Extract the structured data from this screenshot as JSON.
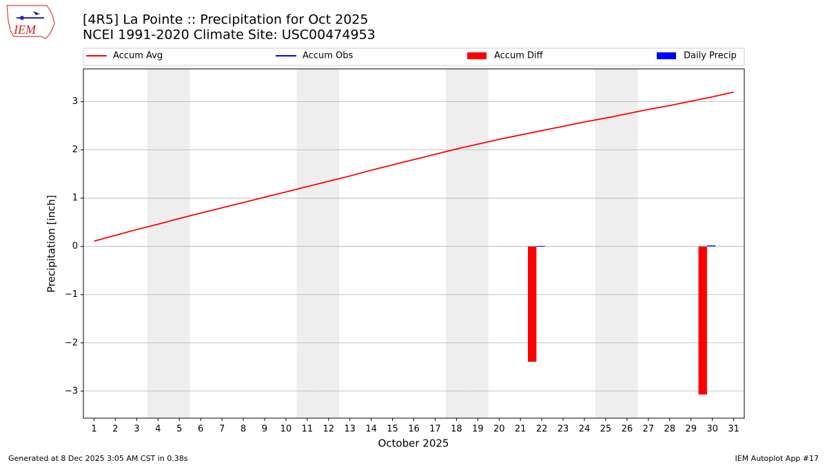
{
  "chart_data": {
    "type": "combo",
    "title": "[4R5] La Pointe :: Precipitation for Oct 2025",
    "subtitle": "NCEI 1991-2020 Climate Site: USC00474953",
    "xlabel": "October 2025",
    "ylabel": "Precipitation [inch]",
    "logo_text": "IEM",
    "footer_left": "Generated at 8 Dec 2025 3:05 AM CST in 0.38s",
    "footer_right": "IEM Autoplot App #17",
    "x": [
      1,
      2,
      3,
      4,
      5,
      6,
      7,
      8,
      9,
      10,
      11,
      12,
      13,
      14,
      15,
      16,
      17,
      18,
      19,
      20,
      21,
      22,
      23,
      24,
      25,
      26,
      27,
      28,
      29,
      30,
      31
    ],
    "xlim": [
      0.5,
      31.5
    ],
    "xticks": [
      1,
      2,
      3,
      4,
      5,
      6,
      7,
      8,
      9,
      10,
      11,
      12,
      13,
      14,
      15,
      16,
      17,
      18,
      19,
      20,
      21,
      22,
      23,
      24,
      25,
      26,
      27,
      28,
      29,
      30,
      31
    ],
    "ylim": [
      -3.56,
      3.68
    ],
    "yticks": [
      {
        "value": -3,
        "label": "−3"
      },
      {
        "value": -2,
        "label": "−2"
      },
      {
        "value": -1,
        "label": "−1"
      },
      0,
      1,
      2,
      3
    ],
    "grid": true,
    "shaded_days": [
      4,
      5,
      11,
      12,
      18,
      19,
      25,
      26
    ],
    "shade_color": "#eeeeee",
    "series": [
      {
        "name": "Accum Avg",
        "type": "line",
        "color": "#ff0000",
        "values": [
          0.11,
          0.23,
          0.35,
          0.46,
          0.58,
          0.69,
          0.8,
          0.91,
          1.02,
          1.13,
          1.24,
          1.35,
          1.46,
          1.58,
          1.69,
          1.8,
          1.91,
          2.02,
          2.12,
          2.22,
          2.31,
          2.4,
          2.49,
          2.58,
          2.66,
          2.75,
          2.84,
          2.92,
          3.01,
          3.1,
          3.2
        ]
      },
      {
        "name": "Accum Obs",
        "type": "line",
        "color": "#0000ff",
        "values": [
          null,
          null,
          null,
          null,
          null,
          null,
          null,
          null,
          null,
          null,
          null,
          null,
          null,
          null,
          null,
          null,
          null,
          null,
          null,
          null,
          null,
          0.01,
          null,
          null,
          null,
          null,
          null,
          null,
          null,
          0.03,
          null
        ]
      },
      {
        "name": "Accum Diff",
        "type": "bar",
        "color": "#ff0000",
        "values": [
          null,
          null,
          null,
          null,
          null,
          null,
          null,
          null,
          null,
          null,
          null,
          null,
          null,
          null,
          null,
          null,
          null,
          null,
          null,
          null,
          null,
          -2.39,
          null,
          null,
          null,
          null,
          null,
          null,
          null,
          -3.07,
          null
        ]
      },
      {
        "name": "Daily Precip",
        "type": "bar",
        "color": "#0000ff",
        "values": [
          null,
          null,
          null,
          null,
          null,
          null,
          null,
          null,
          null,
          null,
          null,
          null,
          null,
          null,
          null,
          null,
          null,
          null,
          null,
          null,
          null,
          0.01,
          null,
          null,
          null,
          null,
          null,
          null,
          null,
          0.02,
          null
        ]
      }
    ]
  }
}
